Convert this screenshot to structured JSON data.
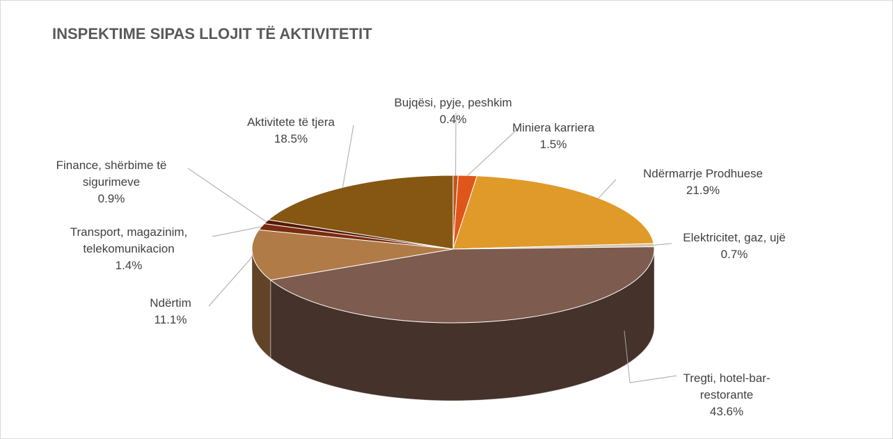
{
  "chart_data": {
    "type": "pie",
    "title": "INSPEKTIME SIPAS LLOJIT TË AKTIVITETIT",
    "categories": [
      "Bujqësi, pyje, peshkim",
      "Miniera karriera",
      "Ndërmarrje Prodhuese",
      "Elektricitet, gaz, ujë",
      "Tregti, hotel-bar-restorante",
      "Ndërtim",
      "Transport, magazinim, telekomunikacion",
      "Finance, shërbime të sigurimeve",
      "Aktivitete të tjera"
    ],
    "values": [
      0.4,
      1.5,
      21.9,
      0.7,
      43.6,
      11.1,
      1.4,
      0.9,
      18.5
    ],
    "value_labels": [
      "0.4%",
      "1.5%",
      "21.9%",
      "0.7%",
      "43.6%",
      "11.1%",
      "1.4%",
      "0.9%",
      "18.5%"
    ],
    "colors": [
      "#c0561c",
      "#e0561a",
      "#df9a2a",
      "#d8c2a4",
      "#7d5b4f",
      "#b07b47",
      "#7a2c0e",
      "#561a08",
      "#855712"
    ]
  }
}
